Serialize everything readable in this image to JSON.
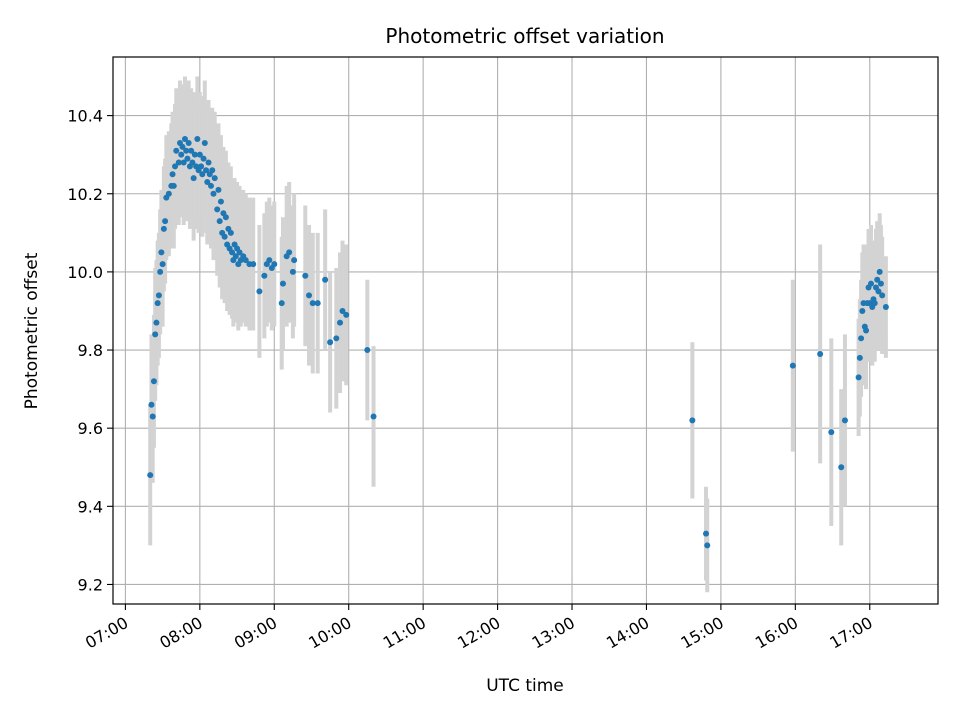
{
  "chart_data": {
    "type": "scatter",
    "title": "Photometric offset variation",
    "xlabel": "UTC time",
    "ylabel": "Photometric offset",
    "x_tick_labels": [
      "07:00",
      "08:00",
      "09:00",
      "10:00",
      "11:00",
      "12:00",
      "13:00",
      "14:00",
      "15:00",
      "16:00",
      "17:00"
    ],
    "y_tick_labels": [
      "9.2",
      "9.4",
      "9.6",
      "9.8",
      "10.0",
      "10.2",
      "10.4"
    ],
    "xlim": [
      "06:50",
      "17:55"
    ],
    "ylim": [
      9.15,
      10.55
    ],
    "grid": true,
    "colors": {
      "point": "#1f77b4",
      "errorbar": "#d3d3d3",
      "grid": "#b0b0b0"
    },
    "series": [
      {
        "points": [
          [
            "07:20",
            9.48,
            0.18
          ],
          [
            "07:21",
            9.66,
            0.18
          ],
          [
            "07:22",
            9.63,
            0.17
          ],
          [
            "07:23",
            9.72,
            0.17
          ],
          [
            "07:24",
            9.84,
            0.17
          ],
          [
            "07:25",
            9.87,
            0.16
          ],
          [
            "07:26",
            9.92,
            0.16
          ],
          [
            "07:27",
            9.94,
            0.16
          ],
          [
            "07:28",
            10.0,
            0.16
          ],
          [
            "07:29",
            10.05,
            0.16
          ],
          [
            "07:30",
            10.02,
            0.16
          ],
          [
            "07:31",
            10.11,
            0.16
          ],
          [
            "07:32",
            10.13,
            0.16
          ],
          [
            "07:33",
            10.19,
            0.16
          ],
          [
            "07:35",
            10.2,
            0.16
          ],
          [
            "07:37",
            10.22,
            0.16
          ],
          [
            "07:38",
            10.25,
            0.16
          ],
          [
            "07:39",
            10.22,
            0.16
          ],
          [
            "07:40",
            10.27,
            0.16
          ],
          [
            "07:41",
            10.31,
            0.16
          ],
          [
            "07:43",
            10.28,
            0.16
          ],
          [
            "07:44",
            10.33,
            0.16
          ],
          [
            "07:45",
            10.3,
            0.16
          ],
          [
            "07:46",
            10.32,
            0.16
          ],
          [
            "07:47",
            10.28,
            0.16
          ],
          [
            "07:48",
            10.34,
            0.16
          ],
          [
            "07:49",
            10.31,
            0.16
          ],
          [
            "07:50",
            10.29,
            0.16
          ],
          [
            "07:51",
            10.33,
            0.16
          ],
          [
            "07:52",
            10.27,
            0.16
          ],
          [
            "07:53",
            10.31,
            0.16
          ],
          [
            "07:54",
            10.28,
            0.16
          ],
          [
            "07:55",
            10.24,
            0.16
          ],
          [
            "07:56",
            10.3,
            0.16
          ],
          [
            "07:57",
            10.27,
            0.16
          ],
          [
            "07:58",
            10.34,
            0.16
          ],
          [
            "07:59",
            10.26,
            0.16
          ],
          [
            "08:00",
            10.3,
            0.16
          ],
          [
            "08:01",
            10.27,
            0.16
          ],
          [
            "08:02",
            10.25,
            0.16
          ],
          [
            "08:03",
            10.29,
            0.16
          ],
          [
            "08:04",
            10.33,
            0.16
          ],
          [
            "08:05",
            10.26,
            0.16
          ],
          [
            "08:06",
            10.23,
            0.16
          ],
          [
            "08:07",
            10.28,
            0.16
          ],
          [
            "08:08",
            10.25,
            0.16
          ],
          [
            "08:09",
            10.22,
            0.16
          ],
          [
            "08:10",
            10.26,
            0.16
          ],
          [
            "08:11",
            10.2,
            0.17
          ],
          [
            "08:12",
            10.24,
            0.17
          ],
          [
            "08:14",
            10.16,
            0.17
          ],
          [
            "08:15",
            10.21,
            0.17
          ],
          [
            "08:16",
            10.13,
            0.17
          ],
          [
            "08:17",
            10.18,
            0.17
          ],
          [
            "08:18",
            10.1,
            0.17
          ],
          [
            "08:19",
            10.15,
            0.17
          ],
          [
            "08:20",
            10.09,
            0.17
          ],
          [
            "08:21",
            10.14,
            0.17
          ],
          [
            "08:22",
            10.07,
            0.17
          ],
          [
            "08:23",
            10.11,
            0.17
          ],
          [
            "08:24",
            10.06,
            0.17
          ],
          [
            "08:25",
            10.1,
            0.17
          ],
          [
            "08:26",
            10.05,
            0.17
          ],
          [
            "08:27",
            10.03,
            0.17
          ],
          [
            "08:28",
            10.07,
            0.17
          ],
          [
            "08:29",
            10.04,
            0.17
          ],
          [
            "08:30",
            10.06,
            0.17
          ],
          [
            "08:31",
            10.02,
            0.17
          ],
          [
            "08:32",
            10.05,
            0.17
          ],
          [
            "08:33",
            10.03,
            0.17
          ],
          [
            "08:35",
            10.04,
            0.17
          ],
          [
            "08:37",
            10.03,
            0.17
          ],
          [
            "08:40",
            10.02,
            0.17
          ],
          [
            "08:43",
            10.02,
            0.17
          ],
          [
            "08:48",
            9.95,
            0.17
          ],
          [
            "08:52",
            9.99,
            0.16
          ],
          [
            "08:54",
            10.02,
            0.16
          ],
          [
            "08:56",
            10.03,
            0.16
          ],
          [
            "08:58",
            10.01,
            0.16
          ],
          [
            "09:00",
            10.02,
            0.16
          ],
          [
            "09:06",
            9.92,
            0.17
          ],
          [
            "09:07",
            9.97,
            0.17
          ],
          [
            "09:10",
            10.04,
            0.18
          ],
          [
            "09:12",
            10.05,
            0.18
          ],
          [
            "09:15",
            10.0,
            0.17
          ],
          [
            "09:16",
            10.03,
            0.17
          ],
          [
            "09:25",
            9.99,
            0.18
          ],
          [
            "09:28",
            9.94,
            0.18
          ],
          [
            "09:31",
            9.92,
            0.18
          ],
          [
            "09:35",
            9.92,
            0.18
          ],
          [
            "09:41",
            9.98,
            0.18
          ],
          [
            "09:45",
            9.82,
            0.18
          ],
          [
            "09:50",
            9.83,
            0.18
          ],
          [
            "09:53",
            9.87,
            0.18
          ],
          [
            "09:55",
            9.9,
            0.18
          ],
          [
            "09:58",
            9.89,
            0.18
          ],
          [
            "10:15",
            9.8,
            0.18
          ],
          [
            "10:20",
            9.63,
            0.18
          ],
          [
            "14:37",
            9.62,
            0.2
          ],
          [
            "14:48",
            9.33,
            0.12
          ],
          [
            "14:49",
            9.3,
            0.12
          ],
          [
            "15:58",
            9.76,
            0.22
          ],
          [
            "16:20",
            9.79,
            0.28
          ],
          [
            "16:29",
            9.59,
            0.24
          ],
          [
            "16:37",
            9.5,
            0.2
          ],
          [
            "16:40",
            9.62,
            0.22
          ],
          [
            "16:51",
            9.73,
            0.15
          ],
          [
            "16:52",
            9.78,
            0.15
          ],
          [
            "16:53",
            9.83,
            0.15
          ],
          [
            "16:54",
            9.9,
            0.15
          ],
          [
            "16:55",
            9.92,
            0.15
          ],
          [
            "16:56",
            9.86,
            0.15
          ],
          [
            "16:57",
            9.85,
            0.15
          ],
          [
            "16:58",
            9.92,
            0.15
          ],
          [
            "16:59",
            9.96,
            0.15
          ],
          [
            "17:00",
            9.92,
            0.15
          ],
          [
            "17:01",
            9.97,
            0.15
          ],
          [
            "17:02",
            9.91,
            0.15
          ],
          [
            "17:03",
            9.93,
            0.15
          ],
          [
            "17:04",
            9.92,
            0.15
          ],
          [
            "17:05",
            9.96,
            0.15
          ],
          [
            "17:06",
            9.98,
            0.15
          ],
          [
            "17:07",
            9.95,
            0.15
          ],
          [
            "17:08",
            10.0,
            0.15
          ],
          [
            "17:09",
            9.97,
            0.15
          ],
          [
            "17:10",
            9.94,
            0.15
          ],
          [
            "17:13",
            9.91,
            0.13
          ]
        ]
      }
    ]
  }
}
